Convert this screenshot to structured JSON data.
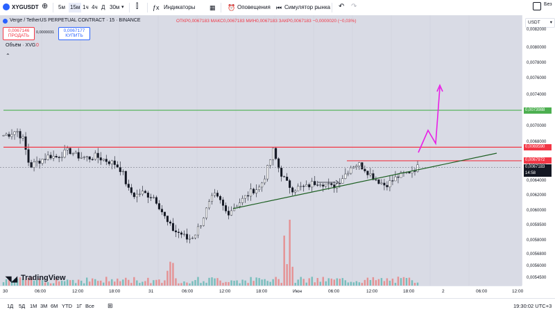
{
  "toolbar": {
    "symbol": "XYGUSDT",
    "intervals": [
      "5м",
      "15м",
      "1ч",
      "4ч",
      "Д",
      "30м"
    ],
    "indicators_label": "Индикаторы",
    "alerts_label": "Оповещения",
    "simulator_label": "Симулятор рынка",
    "right_label": "Без"
  },
  "legend": {
    "title": "Verge / TetherUS PERPETUAL CONTRACT · 15 · BINANCE",
    "ohlc": "ОТКР0,0067183 МАКС0,0067183 МИН0,0067183 ЗАКР0,0067183 −0,0000020 (−0,03%)",
    "sell_price": "0,0067146",
    "sell_label": "ПРОДАТЬ",
    "spread": "0,0000031",
    "buy_price": "0,0067177",
    "buy_label": "КУПИТЬ",
    "volume": "Объём · XVG",
    "volume_value": "0"
  },
  "currency": "USDT",
  "y_ticks": [
    "0,0082000",
    "0,0080000",
    "0,0078000",
    "0,0076000",
    "0,0074000",
    "0,0072000",
    "0,0070000",
    "0,0068000",
    "0,0066000",
    "0,0064000",
    "0,0062000",
    "0,0060000",
    "0,0059500",
    "0,0058000",
    "0,0056800",
    "0,0056000",
    "0,0054500"
  ],
  "price_labels": {
    "green": "0,0073988",
    "red1": "0,0069590",
    "red2": "0,0067972",
    "current": "0,0067183",
    "countdown": "14:58"
  },
  "x_ticks": [
    "30",
    "06:00",
    "12:00",
    "18:00",
    "31",
    "06:00",
    "12:00",
    "18:00",
    "Июн",
    "06:00",
    "12:00",
    "18:00",
    "2",
    "06:00",
    "12:00"
  ],
  "watermark": "TradingView",
  "bottom": {
    "ranges": [
      "1Д",
      "5Д",
      "1М",
      "3М",
      "6М",
      "YTD",
      "1Г",
      "Все"
    ],
    "clock": "19:30:02 UTC+3"
  },
  "colors": {
    "up": "#ffffff",
    "down": "#131722",
    "green_line": "#4caf50",
    "red_line": "#f23645",
    "trend_line": "#1b5e20",
    "projection": "#e91ee6",
    "vol_up": "#26a69a",
    "vol_down": "#ef5350"
  },
  "chart_data": {
    "type": "candlestick",
    "levels": {
      "green": 0.0073988,
      "red1": 0.006959,
      "red2": 0.0067972,
      "current": 0.0067183
    },
    "closes": [
      0.0071,
      0.00712,
      0.00716,
      0.00705,
      0.00672,
      0.00678,
      0.00682,
      0.00686,
      0.00684,
      0.00688,
      0.00692,
      0.00686,
      0.00684,
      0.00683,
      0.00685,
      0.00682,
      0.00679,
      0.00676,
      0.00668,
      0.00645,
      0.00638,
      0.00642,
      0.00639,
      0.00636,
      0.00621,
      0.00605,
      0.00596,
      0.00593,
      0.00586,
      0.00591,
      0.00605,
      0.00624,
      0.00639,
      0.00631,
      0.00617,
      0.00624,
      0.00631,
      0.00638,
      0.00645,
      0.00648,
      0.00666,
      0.00692,
      0.00668,
      0.00654,
      0.00646,
      0.00648,
      0.00648,
      0.00653,
      0.00655,
      0.00652,
      0.00648,
      0.00655,
      0.00664,
      0.00674,
      0.00676,
      0.0067,
      0.00662,
      0.00656,
      0.00651,
      0.00655,
      0.00661,
      0.00664,
      0.00668,
      0.00672
    ]
  }
}
